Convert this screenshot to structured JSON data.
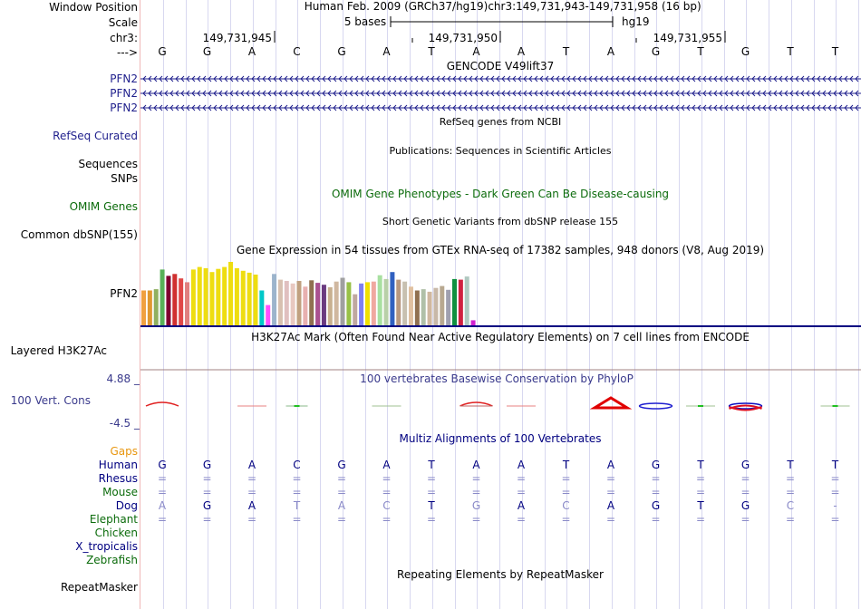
{
  "header": {
    "window_position_label": "Window Position",
    "scale_label": "Scale",
    "chrom_label": "chr3:",
    "strand_label": "--->",
    "assembly_text": "Human Feb. 2009 (GRCh37/hg19)",
    "position_text": "chr3:149,731,943-149,731,958 (16 bp)",
    "scale_text": "5 bases",
    "db_text": "hg19",
    "coords": [
      "149,731,945",
      "149,731,950",
      "149,731,955"
    ]
  },
  "sequence": [
    "G",
    "G",
    "A",
    "C",
    "G",
    "A",
    "T",
    "A",
    "A",
    "T",
    "A",
    "G",
    "T",
    "G",
    "T",
    "T"
  ],
  "tracks": {
    "gencode": {
      "title": "GENCODE V49lift37",
      "genes": [
        "PFN2",
        "PFN2",
        "PFN2"
      ]
    },
    "refseq": {
      "title": "RefSeq genes from NCBI",
      "label": "RefSeq Curated"
    },
    "publications": {
      "title": "Publications: Sequences in Scientific Articles",
      "labels": [
        "Sequences",
        "SNPs"
      ]
    },
    "omim": {
      "title": "OMIM Gene Phenotypes - Dark Green Can Be Disease-causing",
      "label": "OMIM Genes"
    },
    "dbsnp": {
      "title": "Short Genetic Variants from dbSNP release 155",
      "label": "Common dbSNP(155)"
    },
    "gtex": {
      "title": "Gene Expression in 54 tissues from GTEx RNA-seq of 17382 samples, 948 donors (V8, Aug 2019)",
      "label": "PFN2",
      "values": [
        0.55,
        0.55,
        0.57,
        0.88,
        0.78,
        0.81,
        0.74,
        0.68,
        0.88,
        0.92,
        0.9,
        0.84,
        0.89,
        0.92,
        1.0,
        0.9,
        0.86,
        0.83,
        0.8,
        0.55,
        0.32,
        0.81,
        0.72,
        0.7,
        0.66,
        0.7,
        0.61,
        0.71,
        0.67,
        0.64,
        0.6,
        0.69,
        0.75,
        0.68,
        0.49,
        0.66,
        0.68,
        0.69,
        0.79,
        0.73,
        0.84,
        0.72,
        0.69,
        0.61,
        0.55,
        0.57,
        0.53,
        0.59,
        0.62,
        0.56,
        0.73,
        0.72,
        0.77,
        0.08
      ],
      "colors": [
        "#f0a040",
        "#e09830",
        "#90b060",
        "#58b058",
        "#800030",
        "#d03030",
        "#e04848",
        "#e08080",
        "#eedd10",
        "#eedd10",
        "#eedd10",
        "#eedd10",
        "#eedd10",
        "#eedd10",
        "#eedd10",
        "#eedd10",
        "#eedd10",
        "#eedd10",
        "#eedd10",
        "#00c8c8",
        "#ff50ff",
        "#9cb4cc",
        "#d7c0b0",
        "#e0c0c0",
        "#e8c8c0",
        "#c0a080",
        "#e8b0b0",
        "#907050",
        "#aa5090",
        "#6a3a80",
        "#c8b090",
        "#d0b8a0",
        "#a0a0a0",
        "#98c048",
        "#c0a8a0",
        "#8080f0",
        "#f0e000",
        "#f0a8a0",
        "#a8e0a0",
        "#b8d0a8",
        "#3060c0",
        "#b89880",
        "#c8c0b0",
        "#e0c0a0",
        "#907050",
        "#b0c0a8",
        "#d0b8a0",
        "#c8b8a8",
        "#b8a890",
        "#a0a0b0",
        "#109040",
        "#d02040",
        "#b0c8c0",
        "#d020d0"
      ]
    },
    "h3k27ac": {
      "title": "H3K27Ac Mark (Often Found Near Active Regulatory Elements) on 7 cell lines from ENCODE",
      "label": "Layered H3K27Ac"
    },
    "phylop": {
      "title": "100 vertebrates Basewise Conservation by PhyloP",
      "label": "100 Vert. Cons",
      "max_label": "4.88 _",
      "min_label": "-4.5 _"
    },
    "multiz": {
      "title": "Multiz Alignments of 100 Vertebrates",
      "gaps_label": "Gaps",
      "species": [
        {
          "name": "Human",
          "color": "#000080",
          "bases": [
            "G",
            "G",
            "A",
            "C",
            "G",
            "A",
            "T",
            "A",
            "A",
            "T",
            "A",
            "G",
            "T",
            "G",
            "T",
            "T"
          ]
        },
        {
          "name": "Rhesus",
          "color": "#000080",
          "bases": [
            "=",
            "=",
            "=",
            "=",
            "=",
            "=",
            "=",
            "=",
            "=",
            "=",
            "=",
            "=",
            "=",
            "=",
            "=",
            "="
          ]
        },
        {
          "name": "Mouse",
          "color": "#0b6b0b",
          "bases": [
            "=",
            "=",
            "=",
            "=",
            "=",
            "=",
            "=",
            "=",
            "=",
            "=",
            "=",
            "=",
            "=",
            "=",
            "=",
            "="
          ]
        },
        {
          "name": "Dog",
          "color": "#000080",
          "bases": [
            "A",
            "G",
            "A",
            "T",
            "A",
            "C",
            "T",
            "G",
            "A",
            "C",
            "A",
            "G",
            "T",
            "G",
            "C",
            "-"
          ]
        },
        {
          "name": "Elephant",
          "color": "#0b6b0b",
          "bases": [
            "=",
            "=",
            "=",
            "=",
            "=",
            "=",
            "=",
            "=",
            "=",
            "=",
            "=",
            "=",
            "=",
            "=",
            "=",
            "="
          ]
        },
        {
          "name": "Chicken",
          "color": "#0b6b0b",
          "bases": []
        },
        {
          "name": "X_tropicalis",
          "color": "#000080",
          "bases": []
        },
        {
          "name": "Zebrafish",
          "color": "#0b6b0b",
          "bases": []
        }
      ]
    },
    "repeatmasker": {
      "title": "Repeating Elements by RepeatMasker",
      "label": "RepeatMasker"
    }
  }
}
